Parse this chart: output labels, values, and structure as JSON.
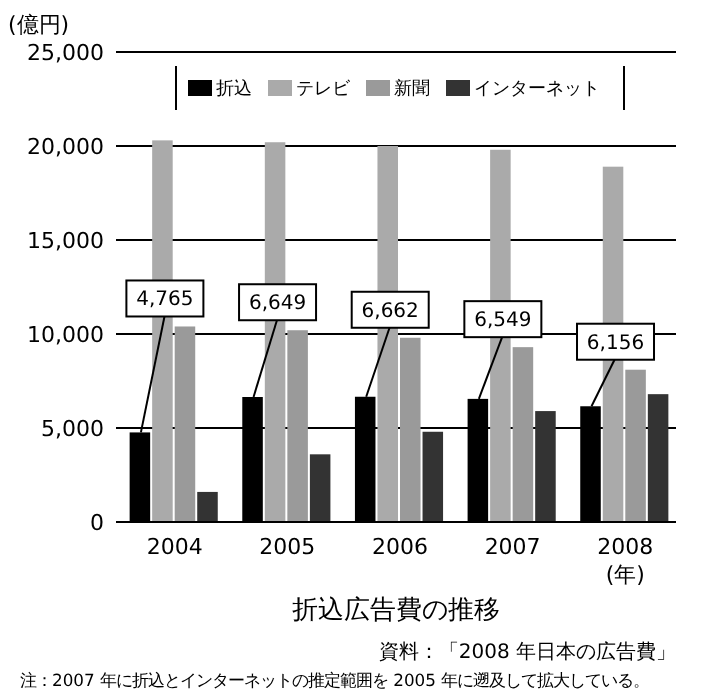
{
  "chart_data": {
    "type": "bar",
    "title": "折込広告費の推移",
    "ylabel": "(億円)",
    "xlabel": "(年)",
    "categories": [
      "2004",
      "2005",
      "2006",
      "2007",
      "2008"
    ],
    "series": [
      {
        "name": "折込",
        "color": "#000000",
        "values": [
          4765,
          6649,
          6662,
          6549,
          6156
        ],
        "value_labels": [
          "4,765",
          "6,649",
          "6,662",
          "6,549",
          "6,156"
        ]
      },
      {
        "name": "テレビ",
        "color": "#aaaaaa",
        "values": [
          20300,
          20200,
          20000,
          19800,
          18900
        ]
      },
      {
        "name": "新聞",
        "color": "#9a9a9a",
        "values": [
          10400,
          10200,
          9800,
          9300,
          8100
        ]
      },
      {
        "name": "インターネット",
        "color": "#333333",
        "values": [
          1600,
          3600,
          4800,
          5900,
          6800
        ]
      }
    ],
    "ylim": [
      0,
      25000
    ],
    "yticks": [
      {
        "value": 0,
        "label": "0"
      },
      {
        "value": 5000,
        "label": "5,000"
      },
      {
        "value": 10000,
        "label": "10,000"
      },
      {
        "value": 15000,
        "label": "15,000"
      },
      {
        "value": 20000,
        "label": "20,000"
      },
      {
        "value": 25000,
        "label": "25,000"
      }
    ],
    "grid": "y",
    "legend": "top",
    "annotations": [
      "資料：「2008 年日本の広告費」",
      "注：2007 年に折込とインターネットの推定範囲を 2005 年に遡及して拡大している。"
    ]
  }
}
